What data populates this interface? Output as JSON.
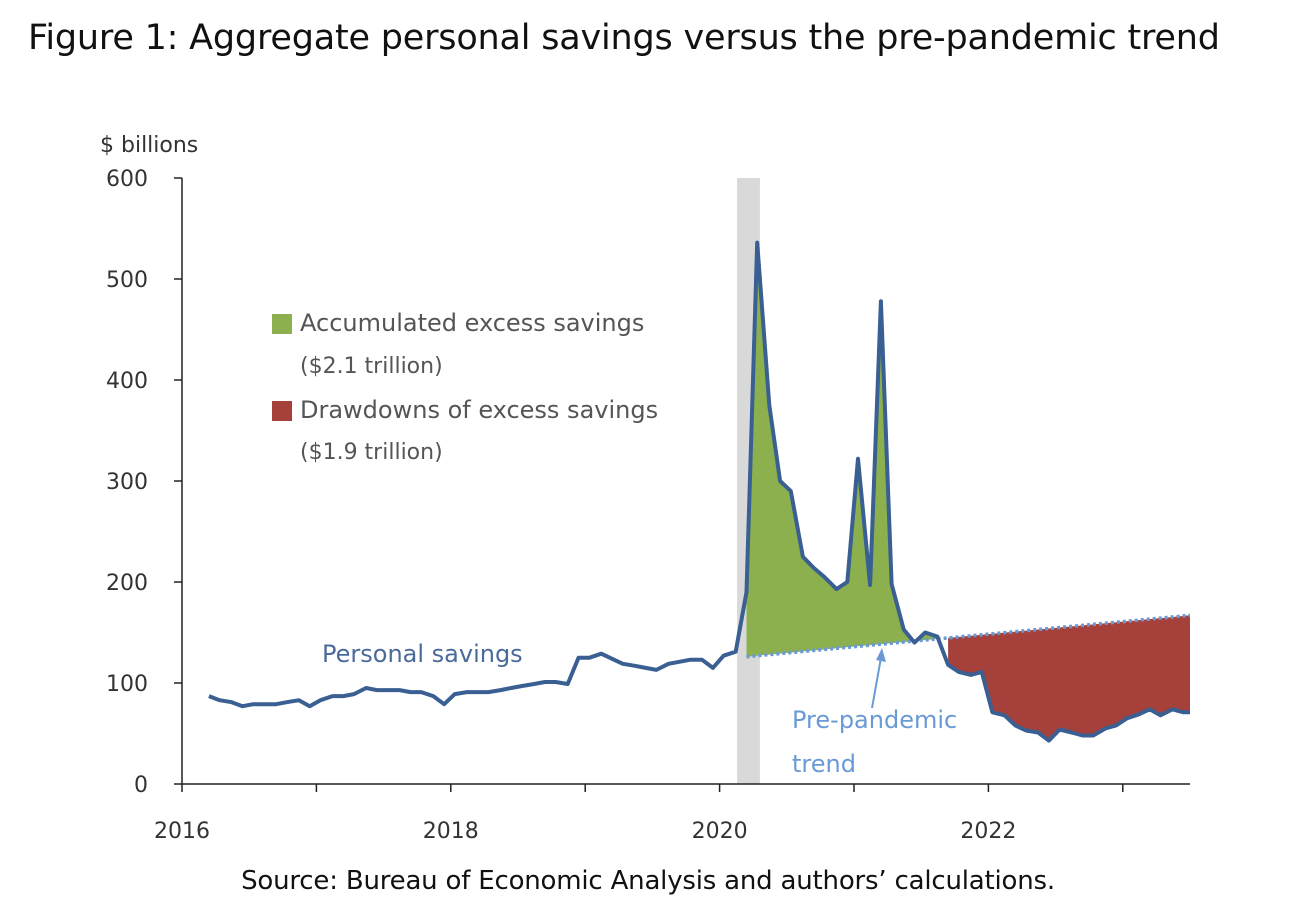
{
  "title": "Figure 1: Aggregate personal savings versus the pre-pandemic trend",
  "source": "Source: Bureau of Economic Analysis and authors’ calculations.",
  "chart_data": {
    "type": "line",
    "ylabel": "$ billions",
    "xlim": [
      2016.0,
      2023.5
    ],
    "ylim": [
      0,
      600
    ],
    "x_ticks": [
      2016,
      2018,
      2020,
      2022
    ],
    "x_minor_ticks": [
      2017,
      2019,
      2021,
      2023
    ],
    "y_ticks": [
      0,
      100,
      200,
      300,
      400,
      500,
      600
    ],
    "grid": false,
    "recession_shade": [
      2020.13,
      2020.3
    ],
    "series": [
      {
        "name": "Personal savings",
        "color": "#3a5f93",
        "x": [
          2016.2,
          2016.28,
          2016.37,
          2016.45,
          2016.53,
          2016.62,
          2016.7,
          2016.78,
          2016.87,
          2016.95,
          2017.03,
          2017.12,
          2017.2,
          2017.28,
          2017.37,
          2017.45,
          2017.53,
          2017.62,
          2017.7,
          2017.78,
          2017.87,
          2017.95,
          2018.03,
          2018.12,
          2018.2,
          2018.28,
          2018.37,
          2018.45,
          2018.53,
          2018.62,
          2018.7,
          2018.78,
          2018.87,
          2018.95,
          2019.03,
          2019.12,
          2019.2,
          2019.28,
          2019.37,
          2019.45,
          2019.53,
          2019.62,
          2019.7,
          2019.78,
          2019.87,
          2019.95,
          2020.03,
          2020.12,
          2020.2,
          2020.28,
          2020.37,
          2020.45,
          2020.53,
          2020.62,
          2020.7,
          2020.78,
          2020.87,
          2020.95,
          2021.03,
          2021.12,
          2021.2,
          2021.28,
          2021.37,
          2021.45,
          2021.53,
          2021.62,
          2021.7,
          2021.78,
          2021.87,
          2021.95,
          2022.03,
          2022.12,
          2022.2,
          2022.28,
          2022.37,
          2022.45,
          2022.53,
          2022.62,
          2022.7,
          2022.78,
          2022.87,
          2022.95,
          2023.03,
          2023.12,
          2023.2,
          2023.28,
          2023.37,
          2023.45,
          2023.5
        ],
        "values": [
          87,
          83,
          81,
          77,
          79,
          79,
          79,
          81,
          83,
          77,
          83,
          87,
          87,
          89,
          95,
          93,
          93,
          93,
          91,
          91,
          87,
          79,
          89,
          91,
          91,
          91,
          93,
          95,
          97,
          99,
          101,
          101,
          99,
          125,
          125,
          129,
          124,
          119,
          117,
          115,
          113,
          119,
          121,
          123,
          123,
          115,
          127,
          131,
          190,
          536,
          375,
          300,
          290,
          225,
          214,
          205,
          193,
          200,
          322,
          197,
          478,
          198,
          153,
          140,
          150,
          146,
          118,
          111,
          108,
          111,
          71,
          68,
          58,
          53,
          51,
          43,
          54,
          51,
          48,
          48,
          55,
          58,
          65,
          69,
          74,
          68,
          74,
          71,
          71
        ]
      },
      {
        "name": "Pre-pandemic trend",
        "color": "#6a9ad6",
        "x": [
          2020.2,
          2023.5
        ],
        "values": [
          126,
          167
        ]
      }
    ],
    "fills": [
      {
        "name": "Accumulated excess savings",
        "note": "($2.1 trillion)",
        "color": "#8db04e"
      },
      {
        "name": "Drawdowns of excess savings",
        "note": "($1.9 trillion)",
        "color": "#a5403a"
      }
    ],
    "legend_position": "upper-left",
    "annotations": {
      "series_label": "Personal savings",
      "trend_label_line1": "Pre-pandemic",
      "trend_label_line2": "trend"
    }
  }
}
